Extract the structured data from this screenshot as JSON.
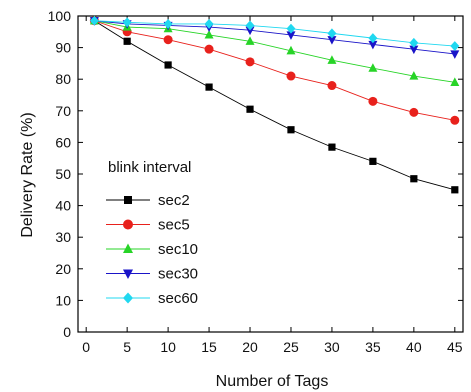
{
  "chart_data": {
    "type": "line",
    "title": "",
    "xlabel": "Number of Tags",
    "ylabel": "Delivery Rate (%)",
    "xlim": [
      -1,
      46
    ],
    "ylim": [
      0,
      100
    ],
    "xticks": [
      0,
      5,
      10,
      15,
      20,
      25,
      30,
      35,
      40,
      45
    ],
    "yticks": [
      0,
      10,
      20,
      30,
      40,
      50,
      60,
      70,
      80,
      90,
      100
    ],
    "grid": false,
    "legend": {
      "title": "blink interval",
      "placement": "lower-left"
    },
    "x": [
      1,
      5,
      10,
      15,
      20,
      25,
      30,
      35,
      40,
      45
    ],
    "series": [
      {
        "name": "sec2",
        "marker": "square",
        "color": "#000000",
        "values": [
          98.5,
          92,
          84.5,
          77.5,
          70.5,
          64,
          58.5,
          54,
          48.5,
          45
        ]
      },
      {
        "name": "sec5",
        "marker": "circle",
        "color": "#e8211c",
        "values": [
          98.5,
          95,
          92.5,
          89.5,
          85.5,
          81,
          78,
          73,
          69.5,
          67
        ]
      },
      {
        "name": "sec10",
        "marker": "triangle-up",
        "color": "#27d427",
        "values": [
          98.5,
          96.5,
          96,
          94,
          92,
          89,
          86,
          83.5,
          81,
          79
        ]
      },
      {
        "name": "sec30",
        "marker": "triangle-down",
        "color": "#1a14c8",
        "values": [
          98.5,
          97.5,
          97,
          96.5,
          95.5,
          94,
          92.5,
          91,
          89.5,
          88
        ]
      },
      {
        "name": "sec60",
        "marker": "diamond",
        "color": "#20d8f0",
        "values": [
          98.5,
          98,
          97.5,
          97.5,
          97,
          96,
          94.5,
          93,
          91.5,
          90.5
        ]
      }
    ]
  }
}
